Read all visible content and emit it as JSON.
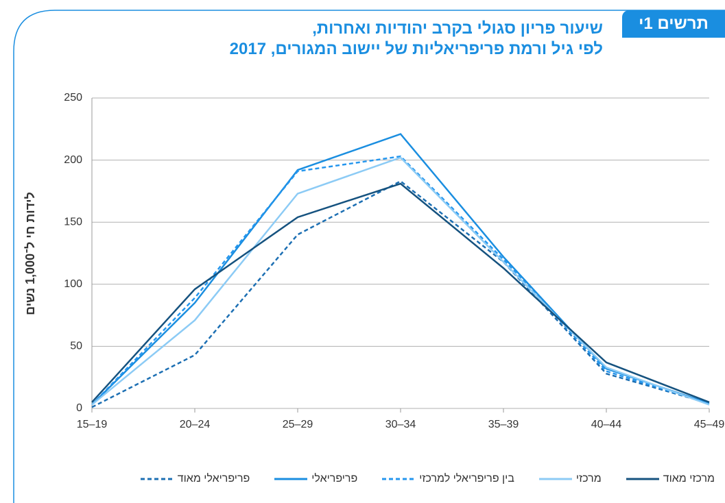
{
  "chart_data": {
    "type": "line",
    "label": "תרשים 1י",
    "title": "שיעור פריון סגולי בקרב יהודיות ואחרות,",
    "subtitle": "לפי גיל ורמת פריפריאליות של יישוב המגורים, 2017",
    "y_label": "לידות חי ל־1,000 נשים",
    "categories": [
      "15–19",
      "20–24",
      "25–29",
      "30–34",
      "35–39",
      "40–44",
      "45–49"
    ],
    "ylim": [
      0,
      250
    ],
    "yticks": [
      0,
      50,
      100,
      150,
      200,
      250
    ],
    "grid": true,
    "series": [
      {
        "name": "מרכזי מאוד",
        "color": "#15527f",
        "dashed": false,
        "values": [
          5,
          96,
          154,
          181,
          113,
          37,
          5
        ]
      },
      {
        "name": "מרכזי",
        "color": "#8ccbf5",
        "dashed": false,
        "values": [
          3,
          71,
          173,
          202,
          118,
          33,
          3
        ]
      },
      {
        "name": "בין פריפריאלי למרכזי",
        "color": "#2496ee",
        "dashed": true,
        "values": [
          3,
          89,
          191,
          203,
          120,
          30,
          4
        ]
      },
      {
        "name": "פריפריאלי",
        "color": "#1a8ee0",
        "dashed": false,
        "values": [
          3,
          85,
          192,
          221,
          122,
          32,
          4
        ]
      },
      {
        "name": "פריפריאלי מאוד",
        "color": "#1c6fb3",
        "dashed": true,
        "values": [
          1,
          43,
          140,
          183,
          118,
          28,
          4
        ]
      }
    ]
  }
}
